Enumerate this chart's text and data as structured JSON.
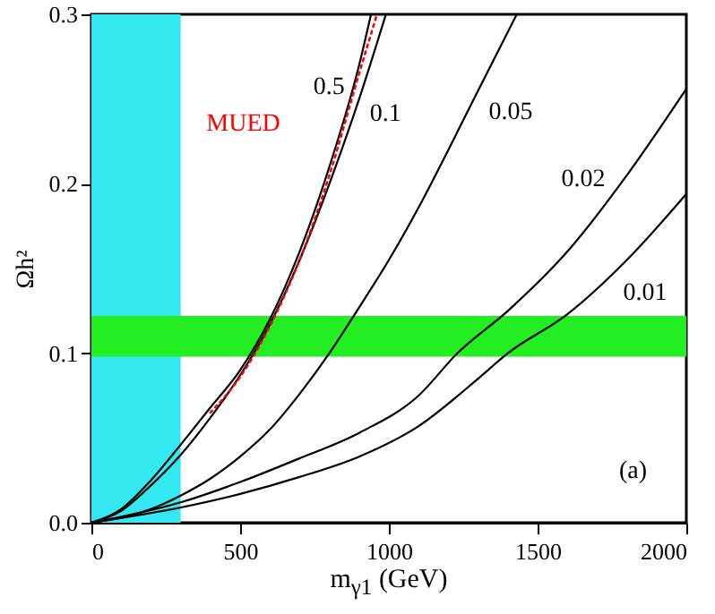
{
  "chart_data": {
    "type": "line",
    "xlabel": "m$_{γ1}$ (GeV)",
    "ylabel": "Ωh²",
    "xlim": [
      0,
      2000
    ],
    "xticks": [
      0,
      500,
      1000,
      1500,
      2000
    ],
    "ylim": [
      0,
      0.3
    ],
    "yticks": [
      {
        "value": 0,
        "label": "0.0"
      },
      0.1,
      0.2,
      0.3
    ],
    "grid": false,
    "marker": "none",
    "series": [
      {
        "name": "0.5",
        "color": "#000000",
        "line_style": "solid",
        "x": [
          0,
          100,
          200,
          300,
          400,
          500,
          600,
          700,
          800,
          900,
          940
        ],
        "values": [
          0,
          0.008,
          0.025,
          0.046,
          0.068,
          0.09,
          0.12,
          0.16,
          0.21,
          0.27,
          0.3
        ]
      },
      {
        "name": "0.1",
        "color": "#000000",
        "line_style": "solid",
        "x": [
          0,
          100,
          200,
          300,
          400,
          500,
          600,
          700,
          800,
          900,
          990
        ],
        "values": [
          0,
          0.007,
          0.022,
          0.04,
          0.062,
          0.087,
          0.117,
          0.155,
          0.2,
          0.25,
          0.3
        ]
      },
      {
        "name": "MUED",
        "color": "#ff0000",
        "line_style": "dotted",
        "x": [
          400,
          500,
          600,
          700,
          800,
          900,
          960
        ],
        "values": [
          0.065,
          0.086,
          0.116,
          0.155,
          0.205,
          0.265,
          0.3
        ]
      },
      {
        "name": "0.05",
        "color": "#000000",
        "line_style": "solid",
        "x": [
          0,
          200,
          300,
          400,
          500,
          600,
          700,
          800,
          900,
          1000,
          1100,
          1200,
          1300,
          1430
        ],
        "values": [
          0,
          0.008,
          0.016,
          0.026,
          0.039,
          0.055,
          0.076,
          0.1,
          0.127,
          0.155,
          0.186,
          0.22,
          0.255,
          0.3
        ]
      },
      {
        "name": "0.02",
        "color": "#000000",
        "line_style": "solid",
        "x": [
          0,
          300,
          500,
          700,
          900,
          1100,
          1230,
          1400,
          1600,
          1800,
          2000
        ],
        "values": [
          0,
          0.012,
          0.024,
          0.038,
          0.053,
          0.075,
          0.1,
          0.125,
          0.16,
          0.205,
          0.256
        ]
      },
      {
        "name": "0.01",
        "color": "#000000",
        "line_style": "solid",
        "x": [
          0,
          300,
          500,
          700,
          900,
          1100,
          1300,
          1400,
          1600,
          1800,
          2000
        ],
        "values": [
          0,
          0.009,
          0.017,
          0.027,
          0.039,
          0.057,
          0.085,
          0.1,
          0.123,
          0.155,
          0.194
        ]
      }
    ],
    "bands": [
      {
        "axis": "x",
        "from": 0,
        "to": 300,
        "color": "#33e8f0"
      },
      {
        "axis": "y",
        "from": 0.098,
        "to": 0.122,
        "color": "#22ee22"
      }
    ],
    "annotations": [
      "(a)"
    ]
  }
}
